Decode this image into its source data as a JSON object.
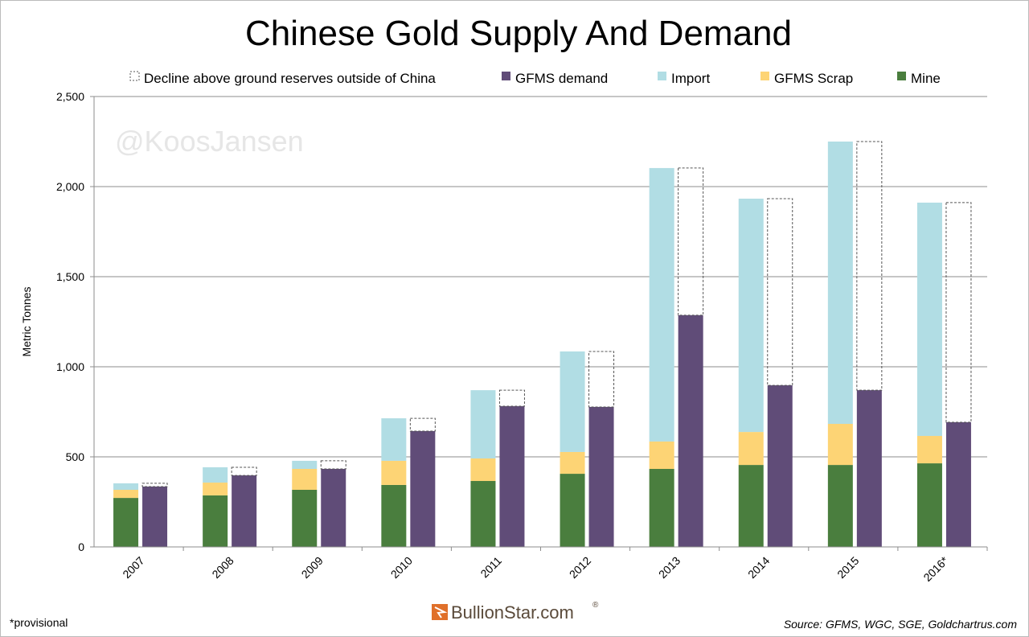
{
  "chart_data": {
    "type": "bar",
    "title": "Chinese Gold Supply And Demand",
    "ylabel": "Metric Tonnes",
    "xlabel": "",
    "ylim": [
      0,
      2500
    ],
    "yticks": [
      0,
      500,
      1000,
      1500,
      2000,
      2500
    ],
    "ytick_labels": [
      "0",
      "500",
      "1,000",
      "1,500",
      "2,000",
      "2,500"
    ],
    "grid": true,
    "legend_position": "top",
    "categories": [
      "2007",
      "2008",
      "2009",
      "2010",
      "2011",
      "2012",
      "2013",
      "2014",
      "2015",
      "2016*"
    ],
    "supply_stack": [
      {
        "name": "Mine",
        "color": "#4a7e3e",
        "values": [
          272,
          286,
          317,
          344,
          366,
          406,
          433,
          455,
          455,
          464
        ]
      },
      {
        "name": "GFMS Scrap",
        "color": "#fdd475",
        "values": [
          45,
          71,
          116,
          134,
          125,
          121,
          152,
          183,
          228,
          152
        ]
      },
      {
        "name": "Import",
        "color": "#b1dde4",
        "values": [
          36,
          85,
          45,
          236,
          379,
          558,
          1518,
          1295,
          1567,
          1295
        ]
      }
    ],
    "demand_stack": [
      {
        "name": "GFMS demand",
        "color": "#604c78",
        "values": [
          335,
          397,
          433,
          643,
          781,
          777,
          1286,
          897,
          870,
          692
        ]
      },
      {
        "name": "Decline above ground reserves outside of China",
        "color": "none",
        "values": [
          18,
          45,
          45,
          71,
          89,
          308,
          817,
          1036,
          1380,
          1219
        ]
      }
    ],
    "legend": [
      "Decline above ground reserves outside of China",
      "GFMS demand",
      "Import",
      "GFMS Scrap",
      "Mine"
    ],
    "watermark": "@KoosJansen",
    "footnote": "*provisional",
    "logo": "BullionStar.com",
    "source": "Source: GFMS, WGC, SGE, Goldchartrus.com"
  }
}
